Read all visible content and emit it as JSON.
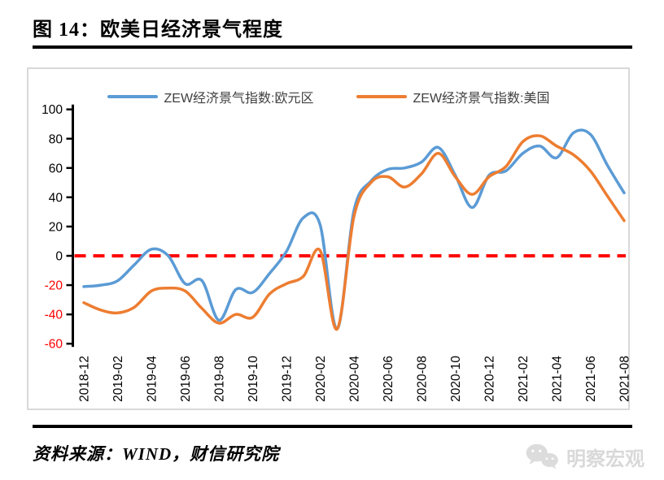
{
  "figure": {
    "number_title": "图 14：欧美日经济景气程度",
    "source": "资料来源：WIND，财信研究院",
    "watermark": "明察宏观"
  },
  "chart_data": {
    "type": "line",
    "title": "",
    "xlabel": "",
    "ylabel": "",
    "ylim": [
      -60,
      100
    ],
    "yticks": [
      100,
      80,
      60,
      40,
      20,
      0,
      -20,
      -40,
      -60
    ],
    "ytick_negative_color": "#FF0000",
    "grid": false,
    "legend_position": "top",
    "zero_line": {
      "value": 0,
      "color": "#FF0000",
      "style": "dashed"
    },
    "x": [
      "2018-12",
      "2019-01",
      "2019-02",
      "2019-03",
      "2019-04",
      "2019-05",
      "2019-06",
      "2019-07",
      "2019-08",
      "2019-09",
      "2019-10",
      "2019-11",
      "2019-12",
      "2020-01",
      "2020-02",
      "2020-03",
      "2020-04",
      "2020-05",
      "2020-06",
      "2020-07",
      "2020-08",
      "2020-09",
      "2020-10",
      "2020-11",
      "2020-12",
      "2021-01",
      "2021-02",
      "2021-03",
      "2021-04",
      "2021-05",
      "2021-06",
      "2021-07",
      "2021-08"
    ],
    "x_ticks_shown": [
      "2018-12",
      "2019-02",
      "2019-04",
      "2019-06",
      "2019-08",
      "2019-10",
      "2019-12",
      "2020-02",
      "2020-04",
      "2020-06",
      "2020-08",
      "2020-10",
      "2020-12",
      "2021-02",
      "2021-04",
      "2021-06",
      "2021-08"
    ],
    "series": [
      {
        "name": "ZEW经济景气指数:欧元区",
        "color": "#5B9BD5",
        "values": [
          -21,
          -20,
          -17,
          -6,
          4.5,
          0,
          -19,
          -17,
          -44,
          -23,
          -25,
          -12,
          3,
          26,
          21,
          -50,
          31,
          51,
          59,
          60,
          64,
          74,
          55,
          33,
          55,
          58,
          70,
          75,
          67,
          84,
          83,
          62,
          43
        ]
      },
      {
        "name": "ZEW经济景气指数:美国",
        "color": "#ED7D31",
        "values": [
          -32,
          -37,
          -39,
          -35,
          -24,
          -22,
          -24,
          -36,
          -46,
          -40,
          -42,
          -26,
          -19,
          -14,
          3.5,
          -50,
          27,
          50,
          54,
          47,
          56,
          70,
          54,
          42,
          54,
          61,
          78,
          82,
          75,
          69,
          58,
          41,
          24
        ]
      }
    ]
  }
}
